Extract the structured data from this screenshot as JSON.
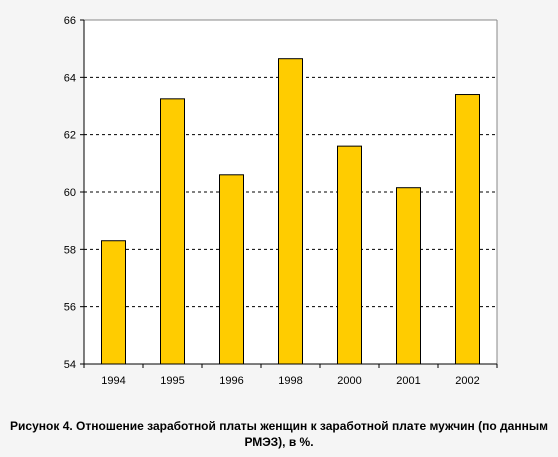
{
  "caption": "Рисунок 4. Отношение заработной платы женщин к заработной плате мужчин (по данным РМЭЗ), в %.",
  "chart_data": {
    "type": "bar",
    "categories": [
      "1994",
      "1995",
      "1996",
      "1998",
      "2000",
      "2001",
      "2002"
    ],
    "values": [
      58.3,
      63.25,
      60.6,
      64.65,
      61.6,
      60.15,
      63.4
    ],
    "title": "",
    "xlabel": "",
    "ylabel": "",
    "ylim": [
      54,
      66
    ],
    "yticks": [
      54,
      56,
      58,
      60,
      62,
      64,
      66
    ],
    "grid": true,
    "legend": "none",
    "bar_color": "#ffcc00",
    "bar_border": "#000000",
    "plot_background": "#ffffff",
    "grid_color": "#000000"
  }
}
